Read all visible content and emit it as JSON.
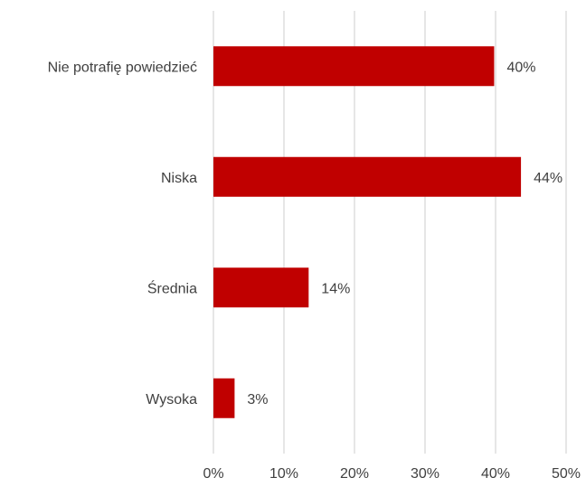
{
  "chart_data": {
    "type": "bar",
    "orientation": "horizontal",
    "categories": [
      "Nie potrafię powiedzieć",
      "Niska",
      "Średnia",
      "Wysoka"
    ],
    "values": [
      40,
      44,
      14,
      3
    ],
    "value_display": [
      39.8,
      43.6,
      13.5,
      3.0
    ],
    "data_labels": [
      "40%",
      "44%",
      "14%",
      "3%"
    ],
    "x_ticks": [
      "0%",
      "10%",
      "20%",
      "30%",
      "40%",
      "50%"
    ],
    "xlim": [
      0,
      50
    ],
    "title": "",
    "xlabel": "",
    "ylabel": "",
    "grid": true,
    "legend": "none",
    "bar_color": "#C00000",
    "grid_color": "#D9D9D9",
    "text_color": "#404040"
  }
}
